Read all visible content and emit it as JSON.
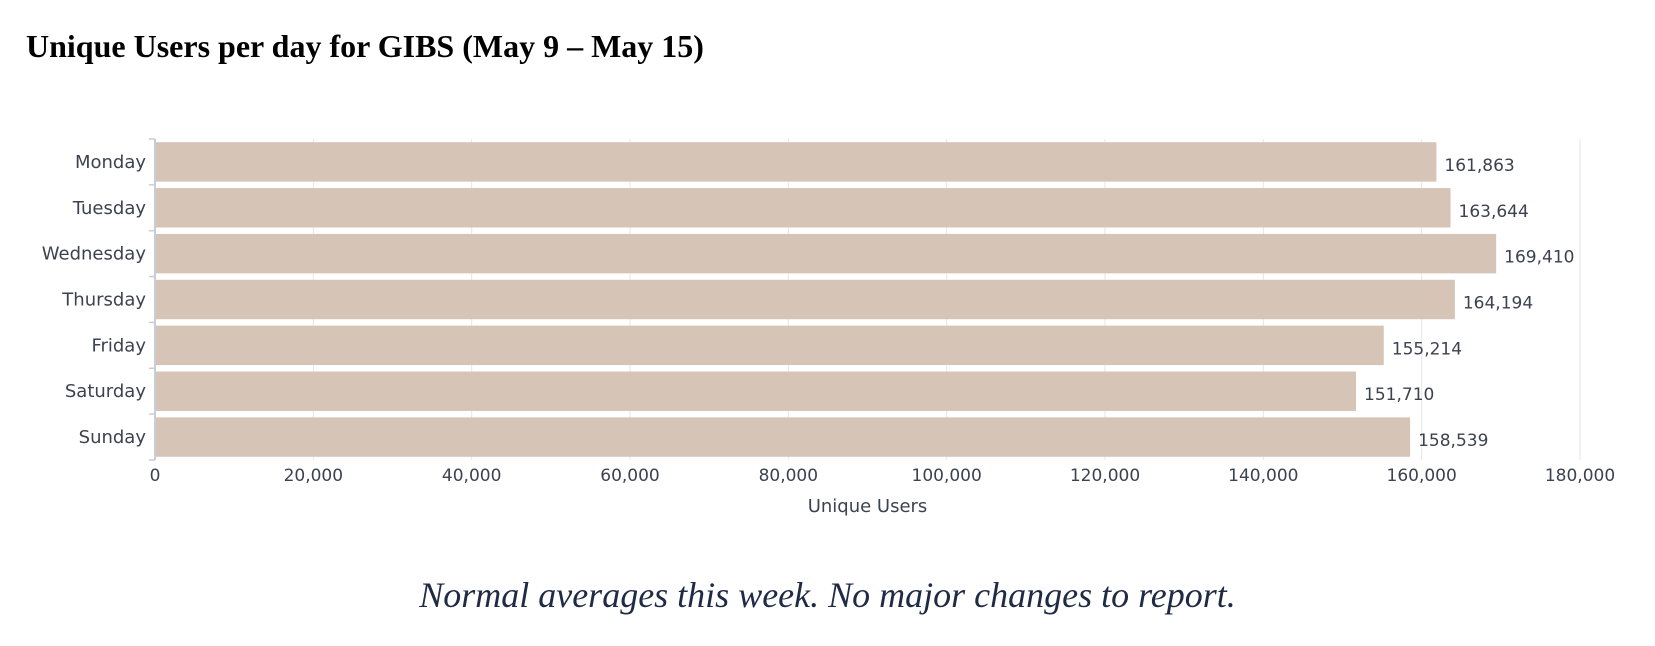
{
  "page": {
    "title": "Unique Users per day for GIBS (May 9 – May 15)",
    "caption": "Normal averages this week.  No major changes to report."
  },
  "colors": {
    "bar": "#d6c4b7",
    "grid": "#e6e6e6",
    "axis": "#c9ced6",
    "text": "#3c4250"
  },
  "chart_data": {
    "type": "bar",
    "orientation": "horizontal",
    "categories": [
      "Monday",
      "Tuesday",
      "Wednesday",
      "Thursday",
      "Friday",
      "Saturday",
      "Sunday"
    ],
    "values": [
      161863,
      163644,
      169410,
      164194,
      155214,
      151710,
      158539
    ],
    "value_labels": [
      "161,863",
      "163,644",
      "169,410",
      "164,194",
      "155,214",
      "151,710",
      "158,539"
    ],
    "xlabel": "Unique Users",
    "ylabel": "",
    "xlim": [
      0,
      180000
    ],
    "xticks": [
      0,
      20000,
      40000,
      60000,
      80000,
      100000,
      120000,
      140000,
      160000,
      180000
    ],
    "xtick_labels": [
      "0",
      "20,000",
      "40,000",
      "60,000",
      "80,000",
      "100,000",
      "120,000",
      "140,000",
      "160,000",
      "180,000"
    ],
    "grid": true,
    "legend": "none"
  }
}
